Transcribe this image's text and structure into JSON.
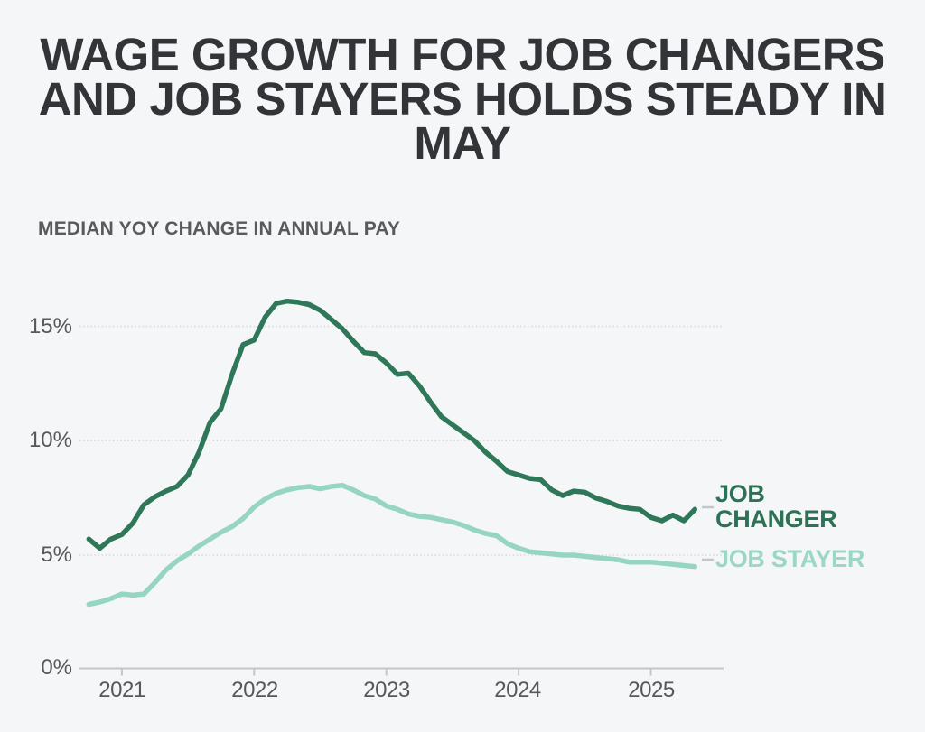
{
  "header": {
    "title_lines": [
      "WAGE GROWTH FOR JOB CHANGERS",
      "AND JOB STAYERS HOLDS STEADY IN",
      "MAY"
    ],
    "subtitle": "MEDIAN YOY CHANGE IN ANNUAL PAY"
  },
  "chart_data": {
    "type": "line",
    "title": "Wage growth for job changers and job stayers holds steady in May",
    "ylabel": "Median YoY change in annual pay (%)",
    "frequency": "monthly",
    "start_month": "2020-10",
    "end_month": "2025-05",
    "grid": "horizontal-dotted",
    "legend_position": "right-of-line-ends",
    "y_axis": {
      "range": [
        0,
        17
      ],
      "ticks": [
        {
          "label": "0%",
          "value": 0
        },
        {
          "label": "5%",
          "value": 5
        },
        {
          "label": "10%",
          "value": 10
        },
        {
          "label": "15%",
          "value": 15
        }
      ]
    },
    "x_axis": {
      "ticks": [
        {
          "label": "2021",
          "month_index": 3
        },
        {
          "label": "2022",
          "month_index": 15
        },
        {
          "label": "2023",
          "month_index": 27
        },
        {
          "label": "2024",
          "month_index": 39
        },
        {
          "label": "2025",
          "month_index": 51
        }
      ]
    },
    "series": [
      {
        "name": "JOB CHANGER",
        "label_lines": [
          "JOB",
          "CHANGER"
        ],
        "color": "#2f7759",
        "values": [
          5.7,
          5.3,
          5.7,
          5.9,
          6.4,
          7.2,
          7.55,
          7.8,
          8.0,
          8.5,
          9.5,
          10.8,
          11.4,
          12.9,
          14.2,
          14.4,
          15.4,
          16.0,
          16.1,
          16.05,
          15.95,
          15.7,
          15.3,
          14.9,
          14.35,
          13.85,
          13.8,
          13.4,
          12.9,
          12.95,
          12.4,
          11.7,
          11.05,
          10.7,
          10.35,
          10.0,
          9.5,
          9.1,
          8.65,
          8.5,
          8.35,
          8.3,
          7.85,
          7.6,
          7.8,
          7.75,
          7.5,
          7.35,
          7.15,
          7.05,
          7.0,
          6.65,
          6.5,
          6.75,
          6.5,
          7.0
        ]
      },
      {
        "name": "JOB STAYER",
        "label_lines": [
          "JOB STAYER"
        ],
        "color": "#96d5c3",
        "values": [
          2.85,
          2.95,
          3.1,
          3.3,
          3.25,
          3.3,
          3.8,
          4.35,
          4.75,
          5.05,
          5.4,
          5.7,
          6.0,
          6.25,
          6.6,
          7.1,
          7.45,
          7.7,
          7.85,
          7.95,
          8.0,
          7.9,
          8.0,
          8.05,
          7.85,
          7.6,
          7.45,
          7.15,
          7.0,
          6.8,
          6.7,
          6.65,
          6.55,
          6.45,
          6.3,
          6.1,
          5.95,
          5.85,
          5.5,
          5.3,
          5.15,
          5.1,
          5.05,
          5.0,
          5.0,
          4.95,
          4.9,
          4.85,
          4.8,
          4.7,
          4.7,
          4.7,
          4.65,
          4.6,
          4.55,
          4.5
        ]
      }
    ],
    "colors": {
      "background": "#f5f6f7",
      "title_text": "#333438",
      "subtitle_text": "#595a5c",
      "axis_text": "#57585a",
      "gridline": "#d4d5d7",
      "axis_line": "#c3c5c7",
      "job_changer": "#2f7759",
      "job_changer_label": "#2d7156",
      "job_stayer": "#96d5c3",
      "job_stayer_label": "#9ad7c5"
    }
  }
}
